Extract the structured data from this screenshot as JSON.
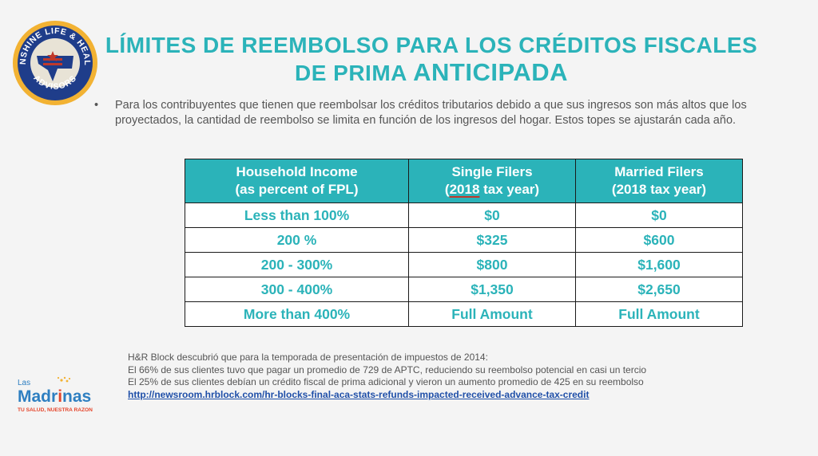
{
  "logo_top": {
    "ring_text": "SUNSHINE LIFE & HEALTH",
    "bottom_text": "ADVISORS"
  },
  "title": {
    "line1": "LÍMITES DE REEMBOLSO PARA LOS CRÉDITOS FISCALES",
    "line2a": "DE PRIMA",
    "line2b": "ANTICIPADA"
  },
  "bullet": "Para los contribuyentes que tienen que reembolsar los créditos tributarios debido a que sus ingresos son más altos que los proyectados, la cantidad de reembolso se limita en función de los ingresos del hogar. Estos topes se ajustarán cada año.",
  "table": {
    "headers": [
      {
        "l1": "Household Income",
        "l2": "(as percent of FPL)"
      },
      {
        "l1": "Single Filers",
        "l2a": "(",
        "l2b": "2018",
        "l2c": " tax year)"
      },
      {
        "l1": "Married Filers",
        "l2": "(2018 tax year)"
      }
    ],
    "rows": [
      [
        "Less than 100%",
        "$0",
        "$0"
      ],
      [
        "200 %",
        "$325",
        "$600"
      ],
      [
        "200 - 300%",
        "$800",
        "$1,600"
      ],
      [
        "300 - 400%",
        "$1,350",
        "$2,650"
      ],
      [
        "More than 400%",
        "Full Amount",
        "Full Amount"
      ]
    ]
  },
  "note": {
    "l1": "H&R Block descubrió que para la temporada de presentación de impuestos de 2014:",
    "l2": "El 66% de sus clientes tuvo que pagar un promedio de 729 de APTC, reduciendo su reembolso potencial en casi un tercio",
    "l3": "El 25% de sus clientes debían un crédito fiscal de prima adicional y vieron un aumento promedio de 425 en su reembolso",
    "link": "http://newsroom.hrblock.com/hr-blocks-final-aca-stats-refunds-impacted-received-advance-tax-credit"
  },
  "logo_bottom": {
    "las": "Las",
    "name_a": "Madr",
    "name_i": "i",
    "name_b": "nas",
    "tagline": "TU SALUD, NUESTRA RAZON"
  },
  "colors": {
    "accent": "#2bb3b9",
    "text": "#555555",
    "link": "#1f4fa8"
  }
}
